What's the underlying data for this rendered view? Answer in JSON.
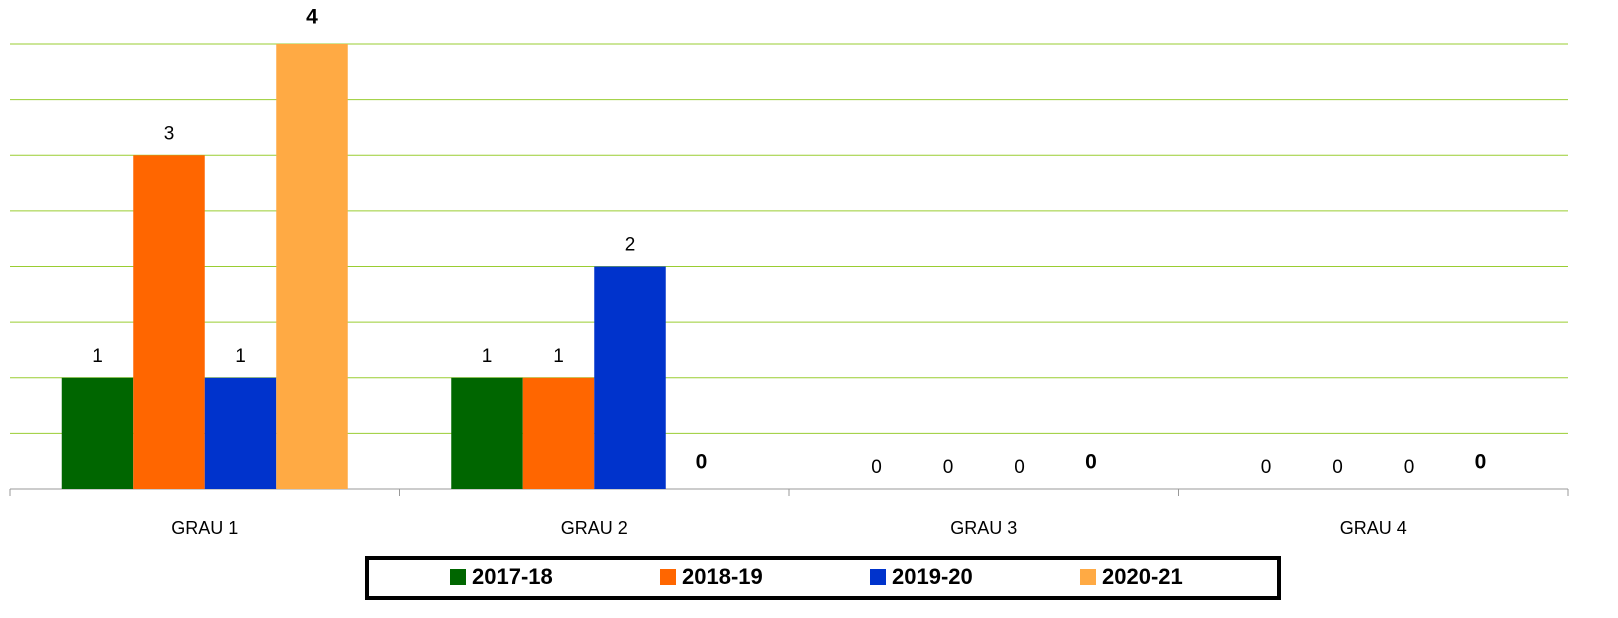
{
  "chart_data": {
    "type": "bar",
    "categories": [
      "GRAU 1",
      "GRAU 2",
      "GRAU 3",
      "GRAU 4"
    ],
    "series": [
      {
        "name": "2017-18",
        "color": "#006600",
        "values": [
          1,
          1,
          0,
          0
        ]
      },
      {
        "name": "2018-19",
        "color": "#ff6600",
        "values": [
          3,
          1,
          0,
          0
        ]
      },
      {
        "name": "2019-20",
        "color": "#0033cc",
        "values": [
          1,
          2,
          0,
          0
        ]
      },
      {
        "name": "2020-21",
        "color": "#ffaa44",
        "values": [
          4,
          0,
          0,
          0
        ]
      }
    ],
    "ylim": [
      0,
      4
    ],
    "yticks": [
      0,
      0.5,
      1,
      1.5,
      2,
      2.5,
      3,
      3.5,
      4
    ],
    "grid": true,
    "legend": "bottom"
  }
}
